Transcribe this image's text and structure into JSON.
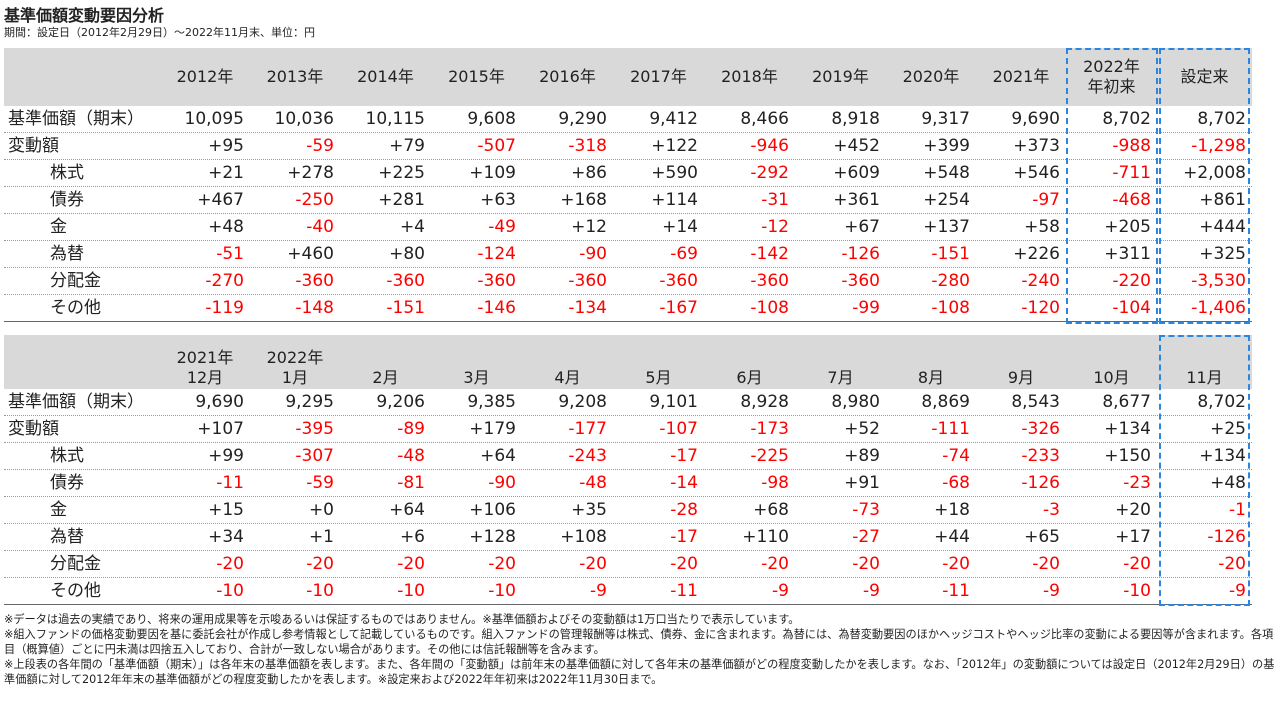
{
  "title": "基準価額変動要因分析",
  "subtitle": "期間：設定日（2012年2月29日）～2022年11月末、単位：円",
  "top_table": {
    "columns": [
      [
        "2012年"
      ],
      [
        "2013年"
      ],
      [
        "2014年"
      ],
      [
        "2015年"
      ],
      [
        "2016年"
      ],
      [
        "2017年"
      ],
      [
        "2018年"
      ],
      [
        "2019年"
      ],
      [
        "2020年"
      ],
      [
        "2021年"
      ],
      [
        "2022年",
        "年初来"
      ],
      [
        "設定来"
      ]
    ],
    "rows": [
      {
        "label": "基準価額（期末）",
        "indent": false,
        "values": [
          "10,095",
          "10,036",
          "10,115",
          "9,608",
          "9,290",
          "9,412",
          "8,466",
          "8,918",
          "9,317",
          "9,690",
          "8,702",
          "8,702"
        ]
      },
      {
        "label": "変動額",
        "indent": false,
        "values": [
          "+95",
          "-59",
          "+79",
          "-507",
          "-318",
          "+122",
          "-946",
          "+452",
          "+399",
          "+373",
          "-988",
          "-1,298"
        ]
      },
      {
        "label": "株式",
        "indent": true,
        "values": [
          "+21",
          "+278",
          "+225",
          "+109",
          "+86",
          "+590",
          "-292",
          "+609",
          "+548",
          "+546",
          "-711",
          "+2,008"
        ]
      },
      {
        "label": "債券",
        "indent": true,
        "values": [
          "+467",
          "-250",
          "+281",
          "+63",
          "+168",
          "+114",
          "-31",
          "+361",
          "+254",
          "-97",
          "-468",
          "+861"
        ]
      },
      {
        "label": "金",
        "indent": true,
        "values": [
          "+48",
          "-40",
          "+4",
          "-49",
          "+12",
          "+14",
          "-12",
          "+67",
          "+137",
          "+58",
          "+205",
          "+444"
        ]
      },
      {
        "label": "為替",
        "indent": true,
        "values": [
          "-51",
          "+460",
          "+80",
          "-124",
          "-90",
          "-69",
          "-142",
          "-126",
          "-151",
          "+226",
          "+311",
          "+325"
        ]
      },
      {
        "label": "分配金",
        "indent": true,
        "values": [
          "-270",
          "-360",
          "-360",
          "-360",
          "-360",
          "-360",
          "-360",
          "-360",
          "-280",
          "-240",
          "-220",
          "-3,530"
        ]
      },
      {
        "label": "その他",
        "indent": true,
        "values": [
          "-119",
          "-148",
          "-151",
          "-146",
          "-134",
          "-167",
          "-108",
          "-99",
          "-108",
          "-120",
          "-104",
          "-1,406"
        ]
      }
    ]
  },
  "bottom_table": {
    "columns": [
      [
        "2021年",
        "12月"
      ],
      [
        "2022年",
        "1月"
      ],
      [
        "2月"
      ],
      [
        "3月"
      ],
      [
        "4月"
      ],
      [
        "5月"
      ],
      [
        "6月"
      ],
      [
        "7月"
      ],
      [
        "8月"
      ],
      [
        "9月"
      ],
      [
        "10月"
      ],
      [
        "11月"
      ]
    ],
    "rows": [
      {
        "label": "基準価額（期末）",
        "indent": false,
        "values": [
          "9,690",
          "9,295",
          "9,206",
          "9,385",
          "9,208",
          "9,101",
          "8,928",
          "8,980",
          "8,869",
          "8,543",
          "8,677",
          "8,702"
        ]
      },
      {
        "label": "変動額",
        "indent": false,
        "values": [
          "+107",
          "-395",
          "-89",
          "+179",
          "-177",
          "-107",
          "-173",
          "+52",
          "-111",
          "-326",
          "+134",
          "+25"
        ]
      },
      {
        "label": "株式",
        "indent": true,
        "values": [
          "+99",
          "-307",
          "-48",
          "+64",
          "-243",
          "-17",
          "-225",
          "+89",
          "-74",
          "-233",
          "+150",
          "+134"
        ]
      },
      {
        "label": "債券",
        "indent": true,
        "values": [
          "-11",
          "-59",
          "-81",
          "-90",
          "-48",
          "-14",
          "-98",
          "+91",
          "-68",
          "-126",
          "-23",
          "+48"
        ]
      },
      {
        "label": "金",
        "indent": true,
        "values": [
          "+15",
          "+0",
          "+64",
          "+106",
          "+35",
          "-28",
          "+68",
          "-73",
          "+18",
          "-3",
          "+20",
          "-1"
        ]
      },
      {
        "label": "為替",
        "indent": true,
        "values": [
          "+34",
          "+1",
          "+6",
          "+128",
          "+108",
          "-17",
          "+110",
          "-27",
          "+44",
          "+65",
          "+17",
          "-126"
        ]
      },
      {
        "label": "分配金",
        "indent": true,
        "values": [
          "-20",
          "-20",
          "-20",
          "-20",
          "-20",
          "-20",
          "-20",
          "-20",
          "-20",
          "-20",
          "-20",
          "-20"
        ]
      },
      {
        "label": "その他",
        "indent": true,
        "values": [
          "-10",
          "-10",
          "-10",
          "-10",
          "-9",
          "-11",
          "-9",
          "-9",
          "-11",
          "-9",
          "-10",
          "-9"
        ]
      }
    ]
  },
  "notes": [
    "※データは過去の実績であり、将来の運用成果等を示唆あるいは保証するものではありません。※基準価額およびその変動額は1万口当たりで表示しています。",
    "※組入ファンドの価格変動要因を基に委託会社が作成し参考情報として記載しているものです。組入ファンドの管理報酬等は株式、債券、金に含まれます。為替には、為替変動要因のほかヘッジコストやヘッジ比率の変動による要因等が含まれます。各項目（概算値）ごとに円未満は四捨五入しており、合計が一致しない場合があります。その他には信託報酬等を含みます。",
    "※上段表の各年間の「基準価額（期末）」は各年末の基準価額を表します。また、各年間の「変動額」は前年末の基準価額に対して各年末の基準価額がどの程度変動したかを表します。なお、「2012年」の変動額については設定日（2012年2月29日）の基準価額に対して2012年年末の基準価額がどの程度変動したかを表します。※設定来および2022年年初来は2022年11月30日まで。"
  ],
  "colors": {
    "negative": "#ff0000",
    "highlight_border": "#2a86e0",
    "header_bg": "#d9d9d9"
  }
}
